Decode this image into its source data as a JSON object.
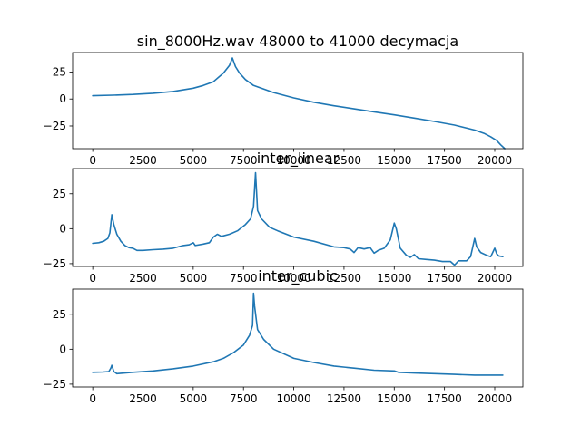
{
  "figure": {
    "background": "#ffffff",
    "line_color": "#1f77b4"
  },
  "chart_data": [
    {
      "type": "line",
      "title": "sin_8000Hz.wav 48000 to 41000 decymacja",
      "xlabel": "",
      "ylabel": "",
      "xlim": [
        -1000,
        21400
      ],
      "ylim": [
        -46,
        43
      ],
      "xticks": [
        0,
        2500,
        5000,
        7500,
        10000,
        12500,
        15000,
        17500,
        20000
      ],
      "xtick_labels": [
        "0",
        "2500",
        "5000",
        "7500",
        "10000",
        "12500",
        "15000",
        "17500",
        "20000"
      ],
      "yticks": [
        25,
        0,
        -25
      ],
      "ytick_labels": [
        "25",
        "0",
        "−25"
      ],
      "grid": false,
      "x": [
        0,
        1000,
        2000,
        3000,
        4000,
        5000,
        5500,
        6000,
        6500,
        6800,
        6950,
        7100,
        7300,
        7600,
        8000,
        9000,
        10000,
        11000,
        12000,
        13000,
        14000,
        15000,
        16000,
        17000,
        18000,
        19000,
        19500,
        19800,
        20100,
        20300,
        20500
      ],
      "y": [
        3,
        3.5,
        4.2,
        5.3,
        7,
        10,
        12.5,
        16,
        24,
        31,
        38,
        30,
        24,
        18,
        12.5,
        6,
        1,
        -3,
        -6.3,
        -9.1,
        -11.9,
        -14.7,
        -17.7,
        -20.8,
        -24.2,
        -28.8,
        -32.1,
        -35,
        -38.5,
        -42.5,
        -46
      ]
    },
    {
      "type": "line",
      "title": "inter_linear",
      "xlabel": "",
      "ylabel": "",
      "xlim": [
        -1000,
        21400
      ],
      "ylim": [
        -27,
        43
      ],
      "xticks": [
        0,
        2500,
        5000,
        7500,
        10000,
        12500,
        15000,
        17500,
        20000
      ],
      "xtick_labels": [
        "0",
        "2500",
        "5000",
        "7500",
        "10000",
        "12500",
        "15000",
        "17500",
        "20000"
      ],
      "yticks": [
        25,
        0,
        -25
      ],
      "ytick_labels": [
        "25",
        "0",
        "−25"
      ],
      "grid": false,
      "x": [
        0,
        300,
        550,
        750,
        850,
        950,
        1050,
        1200,
        1400,
        1600,
        1800,
        2000,
        2200,
        2500,
        3000,
        3500,
        4000,
        4500,
        4800,
        5000,
        5100,
        5500,
        5800,
        6000,
        6200,
        6400,
        6800,
        7200,
        7600,
        7850,
        8000,
        8100,
        8200,
        8400,
        8800,
        9200,
        10000,
        11000,
        12000,
        12500,
        12800,
        13000,
        13200,
        13500,
        13800,
        14000,
        14200,
        14500,
        14800,
        15000,
        15100,
        15300,
        15600,
        15800,
        16000,
        16200,
        16600,
        17000,
        17400,
        17800,
        18000,
        18200,
        18600,
        18800,
        19000,
        19100,
        19300,
        19600,
        19800,
        20000,
        20100,
        20200,
        20400
      ],
      "y": [
        -10.5,
        -10,
        -9,
        -7,
        -3,
        10,
        3,
        -4,
        -9,
        -12,
        -13.5,
        -14,
        -15.5,
        -15.5,
        -15,
        -14.6,
        -14,
        -12,
        -11.5,
        -10,
        -12,
        -11,
        -10,
        -6,
        -4,
        -5.5,
        -4,
        -1.5,
        3,
        7,
        16,
        40,
        13,
        7,
        1,
        -1.5,
        -6,
        -9,
        -13,
        -13.5,
        -14.5,
        -17,
        -13.5,
        -14.5,
        -13.5,
        -17.5,
        -15.5,
        -14,
        -8,
        4,
        0,
        -14,
        -19,
        -20.5,
        -18.5,
        -21.5,
        -22,
        -22.5,
        -23.5,
        -23.5,
        -26,
        -23,
        -23,
        -20,
        -7,
        -13,
        -17,
        -19,
        -20,
        -14,
        -18,
        -19.5,
        -20
      ]
    },
    {
      "type": "line",
      "title": "inter_cubic",
      "xlabel": "",
      "ylabel": "",
      "xlim": [
        -1000,
        21400
      ],
      "ylim": [
        -27,
        43
      ],
      "xticks": [
        0,
        2500,
        5000,
        7500,
        10000,
        12500,
        15000,
        17500,
        20000
      ],
      "xtick_labels": [
        "0",
        "2500",
        "5000",
        "7500",
        "10000",
        "12500",
        "15000",
        "17500",
        "20000"
      ],
      "yticks": [
        25,
        0,
        -25
      ],
      "ytick_labels": [
        "25",
        "0",
        "−25"
      ],
      "grid": false,
      "x": [
        0,
        500,
        800,
        900,
        950,
        1050,
        1200,
        2000,
        3000,
        4000,
        5000,
        6000,
        6500,
        7000,
        7500,
        7800,
        7950,
        8000,
        8050,
        8200,
        8500,
        9000,
        10000,
        11000,
        12000,
        13000,
        14000,
        15000,
        15200,
        16000,
        17000,
        18000,
        19000,
        19500,
        20000,
        20400
      ],
      "y": [
        -16.5,
        -16.3,
        -16,
        -13.5,
        -11.5,
        -16,
        -17.5,
        -16.5,
        -15.5,
        -14,
        -12,
        -9,
        -6.5,
        -2.5,
        3,
        10,
        17,
        40,
        31,
        14,
        7,
        0,
        -6.5,
        -9.5,
        -12,
        -13.5,
        -15,
        -15.5,
        -16.5,
        -17,
        -17.5,
        -18,
        -18.5,
        -18.5,
        -18.5,
        -18.5
      ]
    }
  ]
}
